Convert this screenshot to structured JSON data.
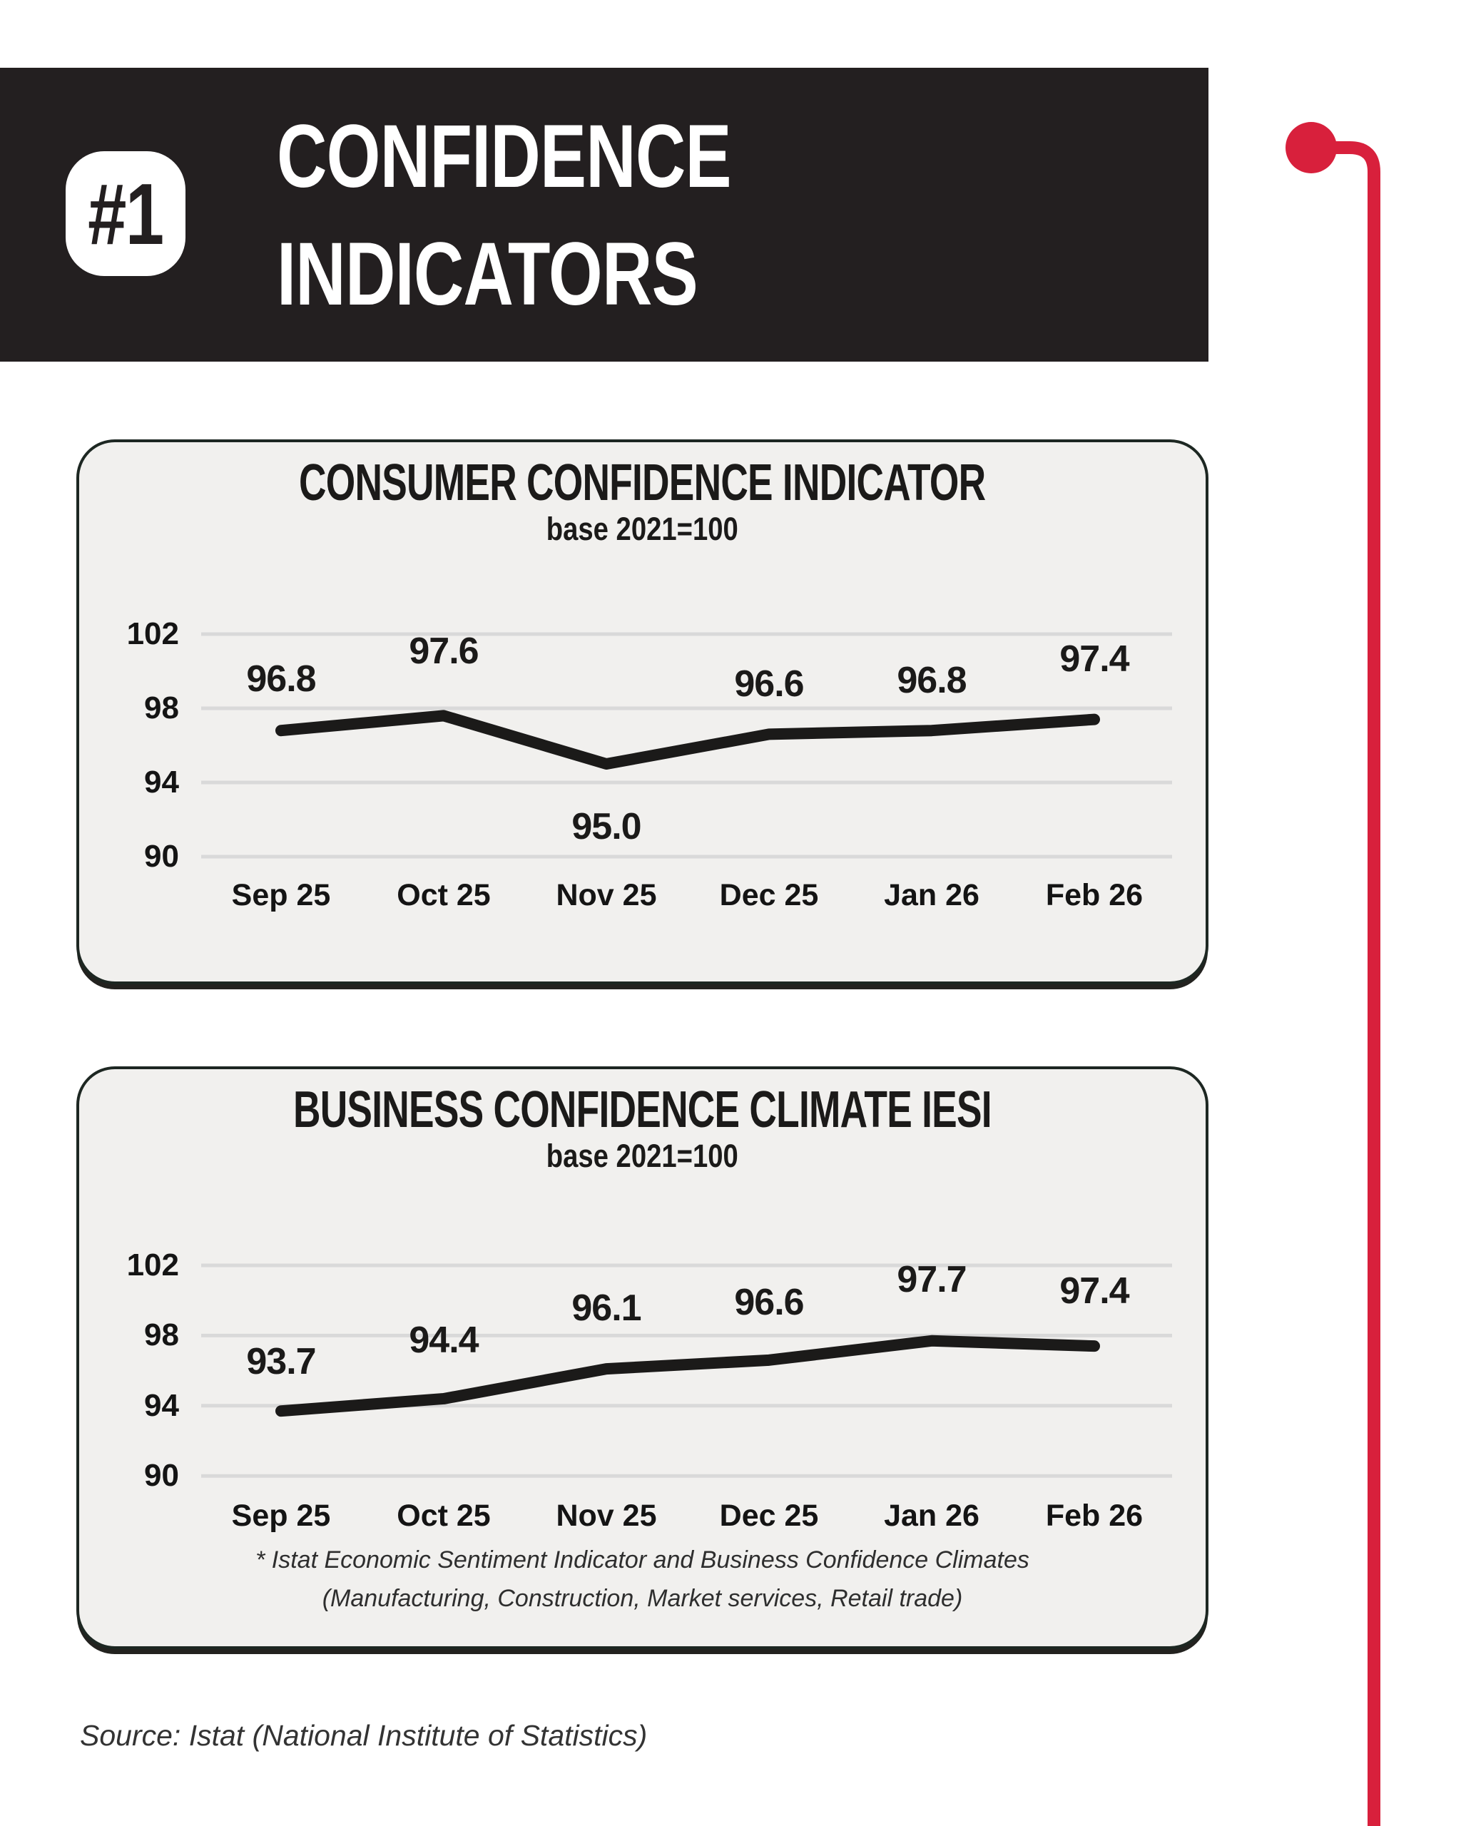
{
  "page": {
    "badge": "#1",
    "title_line1": "CONFIDENCE",
    "title_line2": "INDICATORS",
    "source": "Source: Istat (National Institute of Statistics)",
    "colors": {
      "accent_red": "#d8203c",
      "header_bg": "#231f20",
      "card_bg": "#f1f0ee",
      "line_color": "#1b1a19",
      "grid_color": "#d9d9d9"
    }
  },
  "chart_data": [
    {
      "type": "line",
      "title": "CONSUMER CONFIDENCE INDICATOR",
      "subtitle": "base 2021=100",
      "categories": [
        "Sep 25",
        "Oct 25",
        "Nov 25",
        "Dec 25",
        "Jan 26",
        "Feb 26"
      ],
      "values": [
        96.8,
        97.6,
        95.0,
        96.6,
        96.8,
        97.4
      ],
      "labels": [
        "96.8",
        "97.6",
        "95.0",
        "96.6",
        "96.8",
        "97.4"
      ],
      "yticks": [
        102,
        98,
        94,
        90
      ],
      "ylim": [
        88,
        104
      ],
      "grid": true,
      "legend": "none"
    },
    {
      "type": "line",
      "title": "BUSINESS CONFIDENCE CLIMATE IESI",
      "subtitle": "base 2021=100",
      "categories": [
        "Sep 25",
        "Oct 25",
        "Nov 25",
        "Dec 25",
        "Jan 26",
        "Feb 26"
      ],
      "values": [
        93.7,
        94.4,
        96.1,
        96.6,
        97.7,
        97.4
      ],
      "labels": [
        "93.7",
        "94.4",
        "96.1",
        "96.6",
        "97.7",
        "97.4"
      ],
      "yticks": [
        102,
        98,
        94,
        90
      ],
      "ylim": [
        88,
        104
      ],
      "grid": true,
      "legend": "none",
      "footnote": [
        "* Istat Economic Sentiment Indicator and Business Confidence Climates",
        "(Manufacturing, Construction, Market services, Retail trade)"
      ]
    }
  ]
}
